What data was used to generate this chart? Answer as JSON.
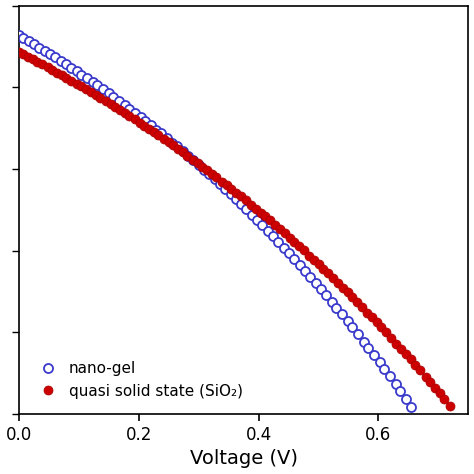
{
  "title": "",
  "xlabel": "Voltage (V)",
  "ylabel": "",
  "xlim": [
    0.0,
    0.75
  ],
  "ylim": [
    -0.02,
    1.08
  ],
  "x_ticks": [
    0.0,
    0.2,
    0.4,
    0.6
  ],
  "background_color": "#ffffff",
  "nanogel": {
    "label": "nano-gel",
    "color": "#3a3acc",
    "Jsc": 1.0,
    "Voc": 0.655,
    "n": 28.0,
    "n_markers": 75
  },
  "quasi": {
    "label": "quasi solid state (SiO₂)",
    "color": "#cc0000",
    "Jsc": 0.955,
    "Voc": 0.72,
    "n": 32.0,
    "n_markers": 90
  }
}
